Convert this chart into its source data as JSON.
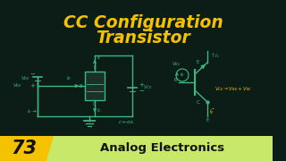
{
  "bg_color": "#0c1c17",
  "title_line1": "CC Configuration",
  "title_line2": "Transistor",
  "title_color": "#f5c200",
  "title_fontsize": 13.5,
  "badge_number": "73",
  "badge_bg": "#f5c200",
  "badge_text_color": "#111111",
  "label_text": "Analog Electronics",
  "label_bg": "#c8e86a",
  "label_text_color": "#111111",
  "circuit_color": "#3db882",
  "circuit_color2": "#f5c200",
  "bottom_bar_height": 28
}
